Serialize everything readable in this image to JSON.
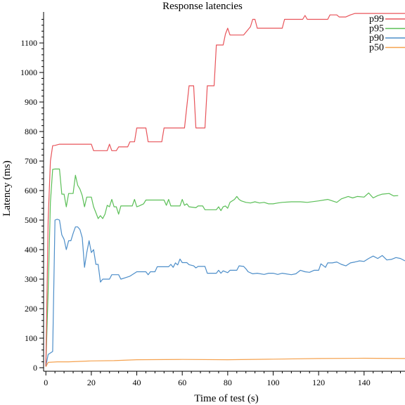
{
  "chart_data": {
    "type": "line",
    "title": "Response latencies",
    "xlabel": "Time of test (s)",
    "ylabel": "Latency (ms)",
    "xlim": [
      -1,
      158
    ],
    "ylim": [
      -12,
      1205
    ],
    "xticks": [
      0,
      20,
      40,
      60,
      80,
      100,
      120,
      140
    ],
    "yticks": [
      0,
      100,
      200,
      300,
      400,
      500,
      600,
      700,
      800,
      900,
      1000,
      1100
    ],
    "grid": false,
    "legend_position": "top-right",
    "series": [
      {
        "name": "p99",
        "color": "#e8545a",
        "points": [
          [
            0,
            5
          ],
          [
            1,
            500
          ],
          [
            2,
            700
          ],
          [
            3,
            752
          ],
          [
            4,
            753
          ],
          [
            6,
            757
          ],
          [
            10,
            757
          ],
          [
            14,
            757
          ],
          [
            20,
            757
          ],
          [
            21,
            735
          ],
          [
            27,
            735
          ],
          [
            28,
            757
          ],
          [
            29,
            735
          ],
          [
            31,
            735
          ],
          [
            32,
            748
          ],
          [
            36,
            748
          ],
          [
            37,
            765
          ],
          [
            39,
            765
          ],
          [
            40,
            812
          ],
          [
            44,
            812
          ],
          [
            45,
            765
          ],
          [
            51,
            765
          ],
          [
            52,
            812
          ],
          [
            61,
            812
          ],
          [
            63,
            955
          ],
          [
            65,
            955
          ],
          [
            66,
            812
          ],
          [
            70,
            812
          ],
          [
            71,
            955
          ],
          [
            74,
            955
          ],
          [
            75,
            1093
          ],
          [
            78,
            1093
          ],
          [
            79,
            1130
          ],
          [
            80,
            1150
          ],
          [
            81,
            1127
          ],
          [
            87,
            1127
          ],
          [
            90,
            1155
          ],
          [
            91,
            1180
          ],
          [
            92,
            1180
          ],
          [
            93,
            1150
          ],
          [
            104,
            1150
          ],
          [
            105,
            1180
          ],
          [
            113,
            1180
          ],
          [
            114,
            1193
          ],
          [
            115,
            1180
          ],
          [
            124,
            1180
          ],
          [
            125,
            1195
          ],
          [
            128,
            1195
          ],
          [
            129,
            1188
          ],
          [
            132,
            1188
          ],
          [
            134,
            1195
          ],
          [
            136,
            1200
          ],
          [
            158,
            1200
          ]
        ]
      },
      {
        "name": "p95",
        "color": "#5bbf57",
        "points": [
          [
            0,
            5
          ],
          [
            1,
            260
          ],
          [
            2,
            560
          ],
          [
            3,
            672
          ],
          [
            4,
            673
          ],
          [
            6,
            673
          ],
          [
            7,
            588
          ],
          [
            8,
            588
          ],
          [
            9,
            545
          ],
          [
            10,
            590
          ],
          [
            12,
            590
          ],
          [
            13,
            652
          ],
          [
            14,
            618
          ],
          [
            15,
            605
          ],
          [
            16,
            583
          ],
          [
            17,
            545
          ],
          [
            18,
            578
          ],
          [
            20,
            578
          ],
          [
            21,
            545
          ],
          [
            22,
            525
          ],
          [
            23,
            505
          ],
          [
            24,
            515
          ],
          [
            25,
            505
          ],
          [
            26,
            520
          ],
          [
            27,
            550
          ],
          [
            28,
            545
          ],
          [
            29,
            570
          ],
          [
            30,
            545
          ],
          [
            31,
            545
          ],
          [
            32,
            520
          ],
          [
            33,
            548
          ],
          [
            38,
            548
          ],
          [
            39,
            570
          ],
          [
            40,
            545
          ],
          [
            41,
            548
          ],
          [
            43,
            555
          ],
          [
            44,
            568
          ],
          [
            52,
            568
          ],
          [
            53,
            550
          ],
          [
            54,
            570
          ],
          [
            55,
            548
          ],
          [
            59,
            548
          ],
          [
            60,
            570
          ],
          [
            61,
            550
          ],
          [
            62,
            555
          ],
          [
            63,
            545
          ],
          [
            66,
            542
          ],
          [
            67,
            548
          ],
          [
            69,
            548
          ],
          [
            70,
            535
          ],
          [
            75,
            535
          ],
          [
            76,
            545
          ],
          [
            77,
            532
          ],
          [
            78,
            545
          ],
          [
            79,
            548
          ],
          [
            80,
            540
          ],
          [
            81,
            560
          ],
          [
            83,
            570
          ],
          [
            84,
            580
          ],
          [
            85,
            570
          ],
          [
            86,
            565
          ],
          [
            88,
            560
          ],
          [
            90,
            558
          ],
          [
            92,
            562
          ],
          [
            94,
            558
          ],
          [
            96,
            560
          ],
          [
            98,
            555
          ],
          [
            100,
            555
          ],
          [
            102,
            558
          ],
          [
            104,
            560
          ],
          [
            108,
            562
          ],
          [
            112,
            562
          ],
          [
            115,
            560
          ],
          [
            120,
            565
          ],
          [
            124,
            570
          ],
          [
            128,
            560
          ],
          [
            130,
            572
          ],
          [
            133,
            580
          ],
          [
            135,
            575
          ],
          [
            137,
            580
          ],
          [
            140,
            578
          ],
          [
            142,
            592
          ],
          [
            144,
            575
          ],
          [
            146,
            583
          ],
          [
            148,
            588
          ],
          [
            151,
            590
          ],
          [
            153,
            582
          ],
          [
            155,
            583
          ]
        ]
      },
      {
        "name": "p90",
        "color": "#4d8ec9",
        "points": [
          [
            0,
            5
          ],
          [
            1,
            45
          ],
          [
            2,
            50
          ],
          [
            3,
            55
          ],
          [
            4,
            500
          ],
          [
            5,
            503
          ],
          [
            6,
            500
          ],
          [
            7,
            450
          ],
          [
            8,
            435
          ],
          [
            9,
            400
          ],
          [
            10,
            430
          ],
          [
            11,
            430
          ],
          [
            12,
            455
          ],
          [
            13,
            477
          ],
          [
            14,
            477
          ],
          [
            15,
            468
          ],
          [
            16,
            440
          ],
          [
            17,
            340
          ],
          [
            18,
            390
          ],
          [
            19,
            430
          ],
          [
            20,
            390
          ],
          [
            21,
            400
          ],
          [
            22,
            350
          ],
          [
            23,
            350
          ],
          [
            24,
            290
          ],
          [
            25,
            300
          ],
          [
            28,
            300
          ],
          [
            29,
            315
          ],
          [
            32,
            315
          ],
          [
            33,
            300
          ],
          [
            35,
            305
          ],
          [
            37,
            310
          ],
          [
            39,
            320
          ],
          [
            40,
            325
          ],
          [
            44,
            325
          ],
          [
            45,
            315
          ],
          [
            46,
            325
          ],
          [
            48,
            325
          ],
          [
            49,
            342
          ],
          [
            54,
            342
          ],
          [
            55,
            350
          ],
          [
            56,
            340
          ],
          [
            57,
            355
          ],
          [
            58,
            348
          ],
          [
            59,
            368
          ],
          [
            60,
            356
          ],
          [
            62,
            356
          ],
          [
            63,
            349
          ],
          [
            65,
            345
          ],
          [
            66,
            338
          ],
          [
            67,
            343
          ],
          [
            70,
            343
          ],
          [
            71,
            320
          ],
          [
            75,
            320
          ],
          [
            76,
            330
          ],
          [
            77,
            320
          ],
          [
            78,
            328
          ],
          [
            80,
            322
          ],
          [
            81,
            330
          ],
          [
            84,
            330
          ],
          [
            85,
            345
          ],
          [
            87,
            343
          ],
          [
            88,
            335
          ],
          [
            89,
            325
          ],
          [
            91,
            318
          ],
          [
            93,
            320
          ],
          [
            96,
            316
          ],
          [
            98,
            320
          ],
          [
            100,
            320
          ],
          [
            102,
            316
          ],
          [
            104,
            320
          ],
          [
            108,
            315
          ],
          [
            110,
            318
          ],
          [
            112,
            330
          ],
          [
            114,
            325
          ],
          [
            116,
            323
          ],
          [
            118,
            330
          ],
          [
            120,
            330
          ],
          [
            121,
            352
          ],
          [
            123,
            340
          ],
          [
            124,
            355
          ],
          [
            126,
            355
          ],
          [
            128,
            358
          ],
          [
            130,
            350
          ],
          [
            132,
            345
          ],
          [
            134,
            355
          ],
          [
            136,
            358
          ],
          [
            138,
            362
          ],
          [
            140,
            360
          ],
          [
            142,
            370
          ],
          [
            144,
            378
          ],
          [
            146,
            370
          ],
          [
            148,
            380
          ],
          [
            150,
            365
          ],
          [
            152,
            367
          ],
          [
            154,
            373
          ],
          [
            156,
            370
          ],
          [
            158,
            362
          ]
        ]
      },
      {
        "name": "p50",
        "color": "#f5a24f",
        "points": [
          [
            0,
            3
          ],
          [
            1,
            18
          ],
          [
            5,
            20
          ],
          [
            10,
            20
          ],
          [
            20,
            23
          ],
          [
            30,
            24
          ],
          [
            40,
            27
          ],
          [
            60,
            28
          ],
          [
            80,
            27
          ],
          [
            100,
            29
          ],
          [
            120,
            31
          ],
          [
            140,
            32
          ],
          [
            158,
            31
          ]
        ]
      }
    ]
  }
}
